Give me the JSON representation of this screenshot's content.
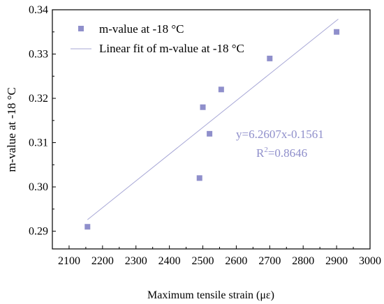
{
  "chart_data": {
    "type": "scatter",
    "xlabel": "Maximum tensile strain (με)",
    "ylabel": "m-value at -18 °C",
    "xlim": [
      2050,
      3000
    ],
    "ylim": [
      0.286,
      0.34
    ],
    "x_ticks": [
      2100,
      2200,
      2300,
      2400,
      2500,
      2600,
      2700,
      2800,
      2900,
      3000
    ],
    "y_ticks": [
      0.29,
      0.3,
      0.31,
      0.32,
      0.33,
      0.34
    ],
    "y_tick_labels": [
      "0.29",
      "0.30",
      "0.31",
      "0.32",
      "0.33",
      "0.34"
    ],
    "grid": false,
    "legend_position": "top-left",
    "series": [
      {
        "name": "m-value at -18 °C",
        "kind": "points",
        "marker": "square",
        "color": "#8f8fcb",
        "x": [
          2155,
          2490,
          2500,
          2520,
          2555,
          2700,
          2900
        ],
        "y": [
          0.291,
          0.302,
          0.318,
          0.312,
          0.322,
          0.329,
          0.335
        ]
      },
      {
        "name": "Linear fit of m-value at -18 °C",
        "kind": "line",
        "color": "#a7a7d6",
        "x": [
          2155,
          2905
        ],
        "y": [
          0.2926,
          0.3379
        ]
      }
    ],
    "annotation": {
      "equation": "y=6.2607x-0.1561",
      "r_squared_prefix": "R",
      "r_squared_exponent": "2",
      "r_squared_value": "=0.8646",
      "color": "#8f8fcb"
    }
  }
}
